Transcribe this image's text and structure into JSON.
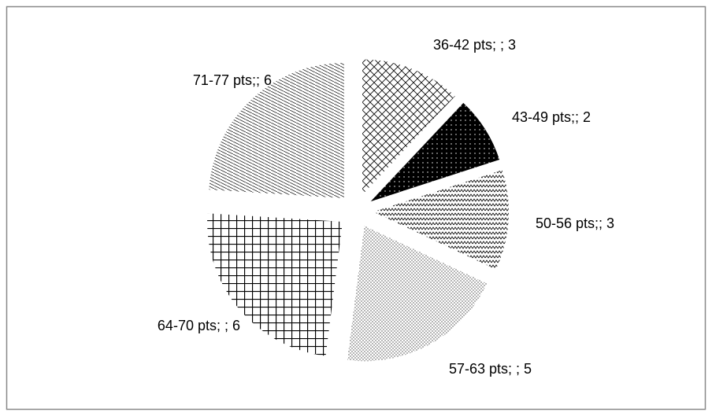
{
  "chart_data": {
    "type": "pie",
    "categories": [
      "36-42 pts",
      "43-49 pts",
      "50-56 pts",
      "57-63 pts",
      "64-70 pts",
      "71-77 pts"
    ],
    "values": [
      3,
      2,
      3,
      5,
      6,
      6
    ],
    "value_labels": [
      "36-42 pts; ; 3",
      "43-49 pts;; 2",
      "50-56 pts;; 3",
      "57-63 pts; ; 5",
      "64-70 pts; ; 6",
      "71-77 pts;; 6"
    ]
  }
}
